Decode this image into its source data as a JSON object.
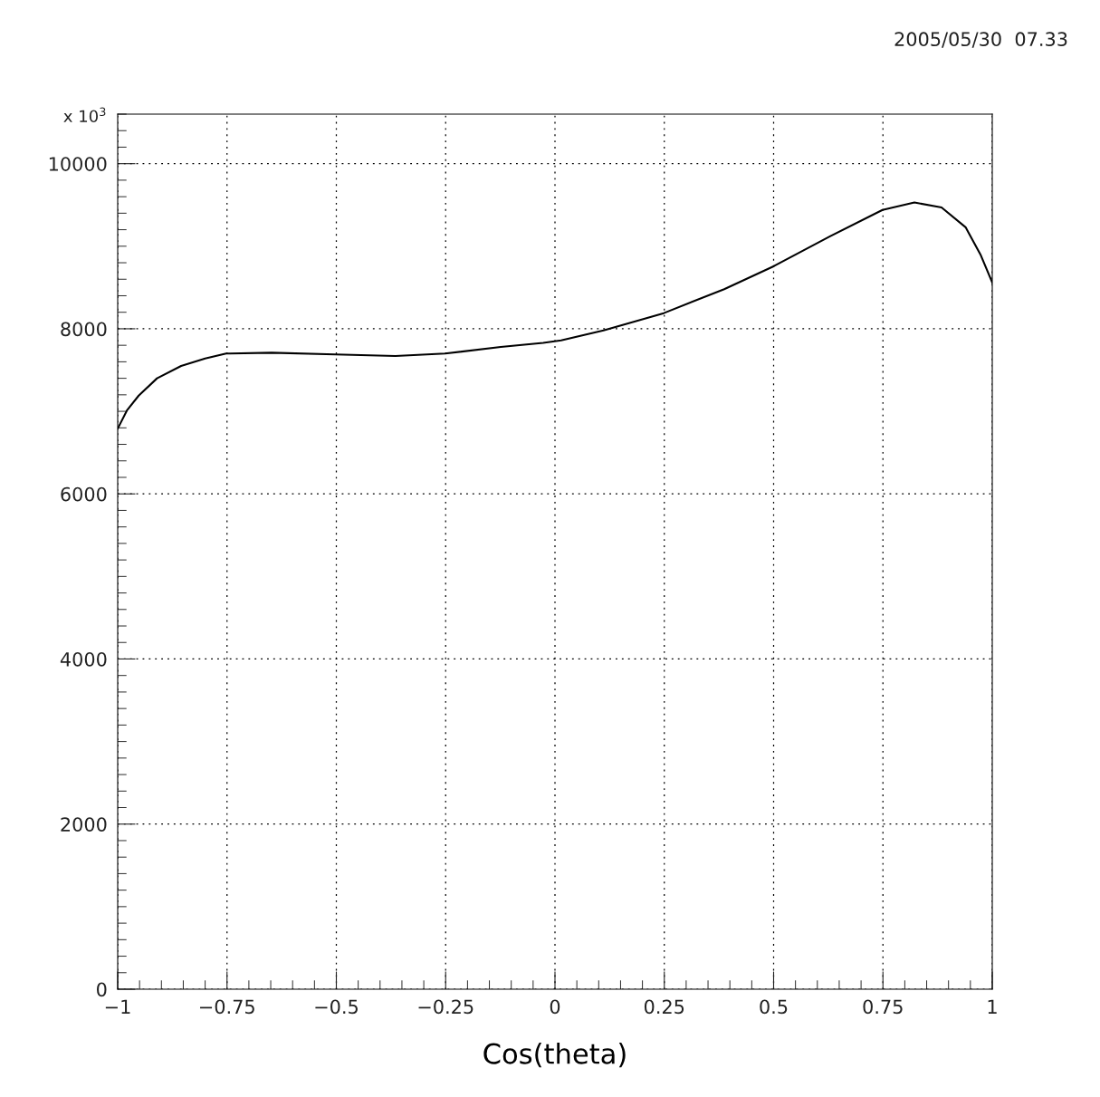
{
  "chart_data": {
    "type": "line",
    "xlabel": "Cos(theta)",
    "annotations": [
      "2005/05/30  07.33",
      "x 10$^{3}$"
    ],
    "x": [
      -1,
      -0.979,
      -0.952,
      -0.91,
      -0.855,
      -0.8,
      -0.752,
      -0.648,
      -0.503,
      -0.365,
      -0.251,
      -0.124,
      -0.027,
      0.014,
      0.111,
      0.249,
      0.387,
      0.501,
      0.629,
      0.749,
      0.822,
      0.884,
      0.939,
      0.973,
      1
    ],
    "series": [
      {
        "color": "#000000",
        "values": [
          6790,
          7010,
          7190,
          7400,
          7550,
          7640,
          7700,
          7710,
          7690,
          7670,
          7700,
          7780,
          7830,
          7860,
          7980,
          8190,
          8480,
          8760,
          9120,
          9440,
          9530,
          9470,
          9230,
          8900,
          8560
        ]
      }
    ],
    "xlim": [
      -1,
      1
    ],
    "xticks": [
      {
        "value": -1,
        "label": "−1"
      },
      {
        "value": -0.75,
        "label": "−0.75"
      },
      {
        "value": -0.5,
        "label": "−0.5"
      },
      {
        "value": -0.25,
        "label": "−0.25"
      },
      0,
      0.25,
      0.5,
      0.75,
      1
    ],
    "ylim": [
      0,
      10600
    ],
    "yticks": [
      0,
      2000,
      4000,
      6000,
      8000,
      10000
    ],
    "grid": true,
    "marker": "none",
    "line_style": "solid"
  }
}
